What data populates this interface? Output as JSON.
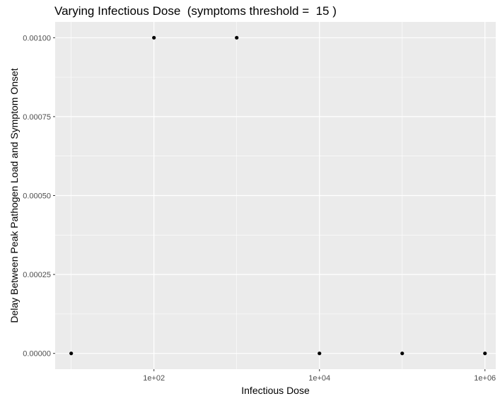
{
  "chart_data": {
    "type": "scatter",
    "title": "Varying Infectious Dose  (symptoms threshold =  15 )",
    "xlabel": "Infectious Dose",
    "ylabel": "Delay Between Peak Pathogen Load and Symptom Onset",
    "x_scale": "log10",
    "xlim": [
      6.4,
      1350000
    ],
    "ylim": [
      -5e-05,
      0.00105
    ],
    "x_ticks": [
      {
        "value": 100,
        "label": "1e+02"
      },
      {
        "value": 10000,
        "label": "1e+04"
      },
      {
        "value": 1000000,
        "label": "1e+06"
      }
    ],
    "x_minor_ticks": [
      10,
      1000,
      100000
    ],
    "y_ticks": [
      {
        "value": 0,
        "label": "0.00000"
      },
      {
        "value": 0.00025,
        "label": "0.00025"
      },
      {
        "value": 0.0005,
        "label": "0.00050"
      },
      {
        "value": 0.00075,
        "label": "0.00075"
      },
      {
        "value": 0.001,
        "label": "0.00100"
      }
    ],
    "points": [
      {
        "x": 10,
        "y": 0
      },
      {
        "x": 100,
        "y": 0.001
      },
      {
        "x": 1000,
        "y": 0.001
      },
      {
        "x": 10000,
        "y": 0
      },
      {
        "x": 100000,
        "y": 0
      },
      {
        "x": 1000000,
        "y": 0
      }
    ],
    "grid": true,
    "panel_background": "#ebebeb",
    "grid_color": "#ffffff",
    "point_color": "#000000"
  }
}
